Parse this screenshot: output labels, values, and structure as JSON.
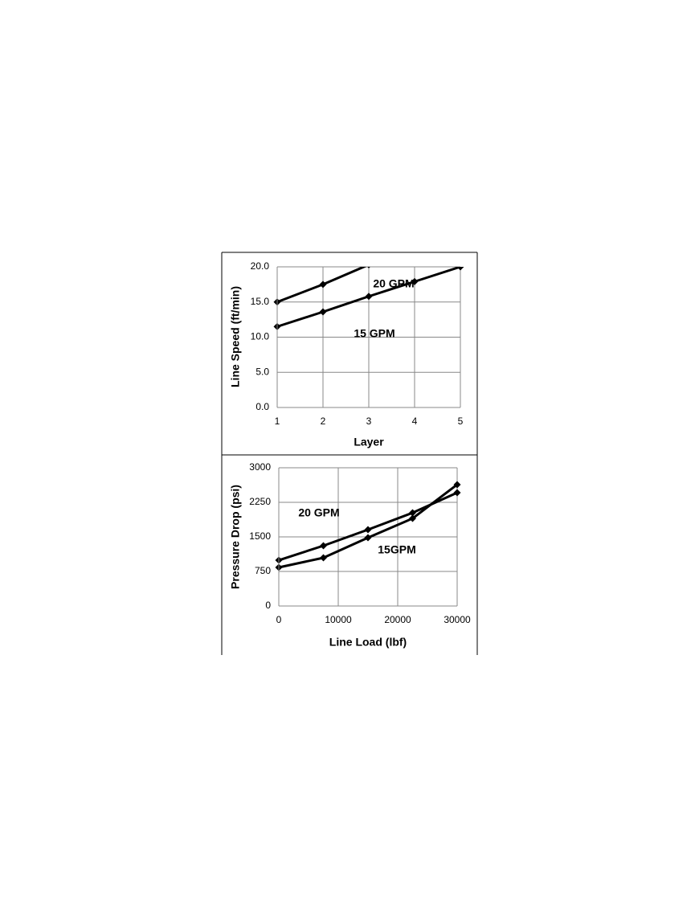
{
  "chart_data": [
    {
      "type": "line",
      "xlabel": "Layer",
      "ylabel": "Line  Speed (ft/min)",
      "x": [
        1,
        2,
        3,
        4,
        5
      ],
      "series": [
        {
          "name": "20 GPM",
          "color": "#000000",
          "values": [
            15.0,
            17.5,
            20.3,
            null,
            null
          ]
        },
        {
          "name": "15 GPM",
          "color": "#000000",
          "values": [
            11.5,
            13.6,
            15.8,
            17.9,
            20.0
          ]
        }
      ],
      "annotations": [
        "20 GPM",
        "15 GPM"
      ],
      "xlim": [
        1,
        5
      ],
      "xticks": [
        1,
        2,
        3,
        4,
        5
      ],
      "ylim": [
        0,
        20
      ],
      "yticks": [
        {
          "value": 0,
          "label": "0.0"
        },
        {
          "value": 5,
          "label": "5.0"
        },
        {
          "value": 10,
          "label": "10.0"
        },
        {
          "value": 15,
          "label": "15.0"
        },
        {
          "value": 20,
          "label": "20.0"
        }
      ],
      "grid": true
    },
    {
      "type": "line",
      "xlabel": "Line Load (lbf)",
      "ylabel": "Pressure Drop  (psi)",
      "x": [
        0,
        7500,
        15000,
        22500,
        30000
      ],
      "series": [
        {
          "name": "20 GPM",
          "color": "#000000",
          "values": [
            994,
            1308,
            1657,
            2023,
            2459
          ]
        },
        {
          "name": "15GPM",
          "color": "#000000",
          "values": [
            837,
            1047,
            1483,
            1901,
            2634
          ]
        }
      ],
      "annotations": [
        "20 GPM",
        "15GPM"
      ],
      "xlim": [
        0,
        30000
      ],
      "xticks": [
        0,
        10000,
        20000,
        30000
      ],
      "ylim": [
        0,
        3000
      ],
      "yticks": [
        0,
        750,
        1500,
        2250,
        3000
      ],
      "grid": true
    }
  ]
}
